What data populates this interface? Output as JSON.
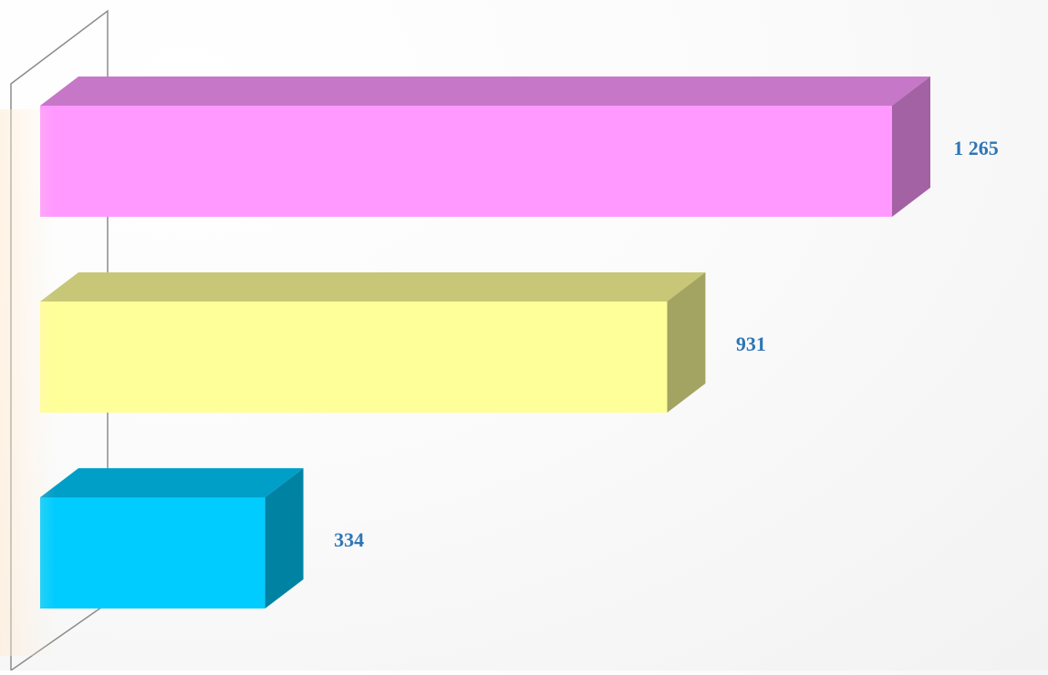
{
  "chart_data": {
    "type": "bar",
    "orientation": "horizontal",
    "style": "3d",
    "categories": [
      "",
      "",
      ""
    ],
    "values": [
      1265,
      931,
      334
    ],
    "value_labels": [
      "1 265",
      "931",
      "334"
    ],
    "colors": {
      "bars": [
        "#ff99ff",
        "#ffff99",
        "#00ccff"
      ],
      "label": "#2e75b6",
      "wall": "#8c8c8c"
    },
    "xlim": [
      0,
      1265
    ],
    "grid": false,
    "legend": "none",
    "title": "",
    "xlabel": "",
    "ylabel": ""
  }
}
